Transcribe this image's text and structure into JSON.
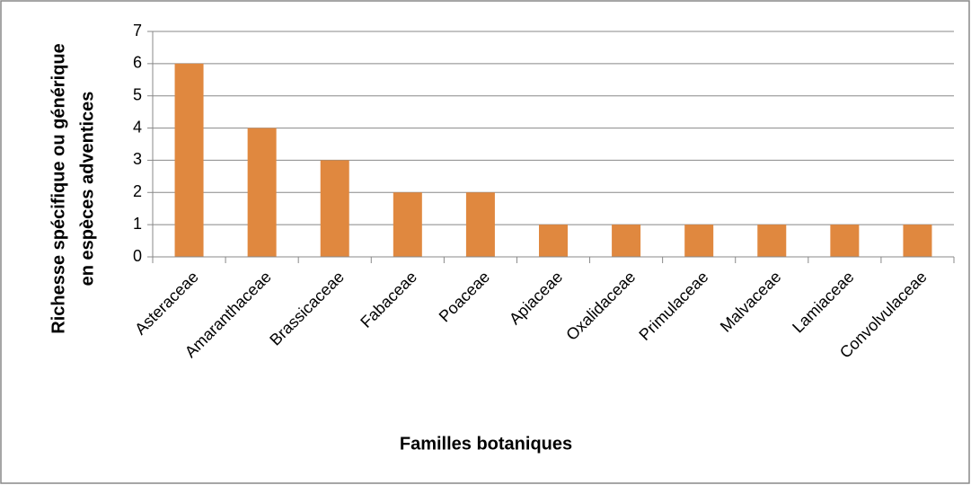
{
  "chart_data": {
    "type": "bar",
    "ylabel": [
      "Richesse spécifique ou générique",
      "en espèces adventices"
    ],
    "xlabel": "Familles botaniques",
    "categories": [
      "Asteraceae",
      "Amaranthaceae",
      "Brassicaceae",
      "Fabaceae",
      "Poaceae",
      "Apiaceae",
      "Oxalidaceae",
      "Primulaceae",
      "Malvaceae",
      "Lamiaceae",
      "Convolvulaceae"
    ],
    "values": [
      6,
      4,
      3,
      2,
      2,
      1,
      1,
      1,
      1,
      1,
      1
    ],
    "color": "#e0883f",
    "ylim": [
      0,
      7
    ],
    "yticks": [
      0,
      1,
      2,
      3,
      4,
      5,
      6,
      7
    ],
    "grid": true
  }
}
